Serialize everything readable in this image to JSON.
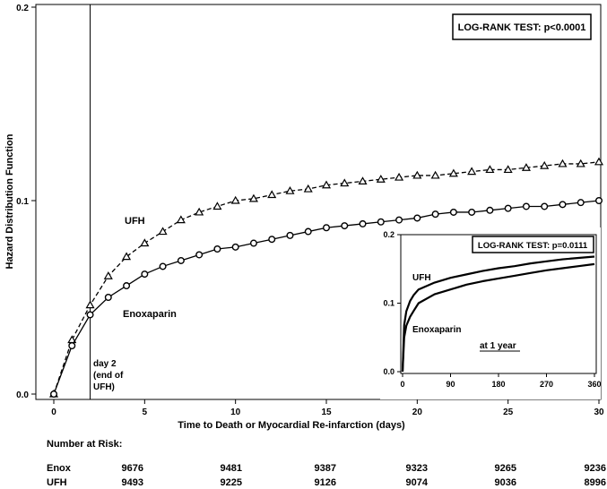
{
  "chart_data": [
    {
      "type": "line",
      "ylabel": "Hazard Distribution Function",
      "xlabel": "Time to Death or Myocardial Re-infarction (days)",
      "xlim": [
        0,
        30
      ],
      "ylim": [
        0,
        0.2
      ],
      "xticks": [
        "0",
        "5",
        "10",
        "15",
        "20",
        "25",
        "30"
      ],
      "yticks": [
        "0.0",
        "0.1",
        "0.2"
      ],
      "annotation_box": "LOG-RANK TEST: p<0.0001",
      "vline": {
        "x": 2,
        "label_lines": [
          "day 2",
          "(end of",
          "UFH)"
        ]
      },
      "series": [
        {
          "name": "UFH",
          "marker": "triangle",
          "dash": "dashed",
          "x": [
            0,
            1,
            2,
            3,
            4,
            5,
            6,
            7,
            8,
            9,
            10,
            11,
            12,
            13,
            14,
            15,
            16,
            17,
            18,
            19,
            20,
            21,
            22,
            23,
            24,
            25,
            26,
            27,
            28,
            29,
            30
          ],
          "y": [
            0,
            0.028,
            0.046,
            0.061,
            0.071,
            0.078,
            0.084,
            0.09,
            0.094,
            0.097,
            0.1,
            0.101,
            0.103,
            0.105,
            0.106,
            0.108,
            0.109,
            0.11,
            0.111,
            0.112,
            0.113,
            0.113,
            0.114,
            0.115,
            0.116,
            0.116,
            0.117,
            0.118,
            0.119,
            0.119,
            0.12
          ]
        },
        {
          "name": "Enoxaparin",
          "marker": "circle",
          "dash": "solid",
          "x": [
            0,
            1,
            2,
            3,
            4,
            5,
            6,
            7,
            8,
            9,
            10,
            11,
            12,
            13,
            14,
            15,
            16,
            17,
            18,
            19,
            20,
            21,
            22,
            23,
            24,
            25,
            26,
            27,
            28,
            29,
            30
          ],
          "y": [
            0,
            0.025,
            0.041,
            0.05,
            0.056,
            0.062,
            0.066,
            0.069,
            0.072,
            0.075,
            0.076,
            0.078,
            0.08,
            0.082,
            0.084,
            0.086,
            0.087,
            0.088,
            0.089,
            0.09,
            0.091,
            0.093,
            0.094,
            0.094,
            0.095,
            0.096,
            0.097,
            0.097,
            0.098,
            0.099,
            0.1
          ]
        }
      ]
    },
    {
      "type": "line",
      "inset": true,
      "xlim": [
        0,
        360
      ],
      "ylim": [
        0,
        0.2
      ],
      "xticks": [
        "0",
        "90",
        "180",
        "270",
        "360"
      ],
      "yticks": [
        "0.0",
        "0.1",
        "0.2"
      ],
      "annotation_box": "LOG-RANK TEST: p=0.0111",
      "caption": "at 1 year",
      "series": [
        {
          "name": "UFH",
          "x": [
            0,
            3,
            7,
            14,
            21,
            30,
            60,
            90,
            120,
            150,
            180,
            210,
            240,
            270,
            300,
            330,
            360
          ],
          "y": [
            0,
            0.068,
            0.088,
            0.103,
            0.112,
            0.12,
            0.13,
            0.137,
            0.142,
            0.147,
            0.151,
            0.154,
            0.158,
            0.161,
            0.164,
            0.166,
            0.168
          ]
        },
        {
          "name": "Enoxaparin",
          "x": [
            0,
            3,
            7,
            14,
            21,
            30,
            60,
            90,
            120,
            150,
            180,
            210,
            240,
            270,
            300,
            330,
            360
          ],
          "y": [
            0,
            0.05,
            0.067,
            0.08,
            0.089,
            0.1,
            0.113,
            0.12,
            0.127,
            0.132,
            0.136,
            0.14,
            0.144,
            0.148,
            0.151,
            0.154,
            0.157
          ]
        }
      ]
    }
  ],
  "risk_table": {
    "title": "Number at Risk:",
    "rows": [
      {
        "label": "Enox",
        "values": [
          "9676",
          "9481",
          "9387",
          "9323",
          "9265",
          "9236"
        ]
      },
      {
        "label": "UFH",
        "values": [
          "9493",
          "9225",
          "9126",
          "9074",
          "9036",
          "8996"
        ]
      }
    ]
  }
}
